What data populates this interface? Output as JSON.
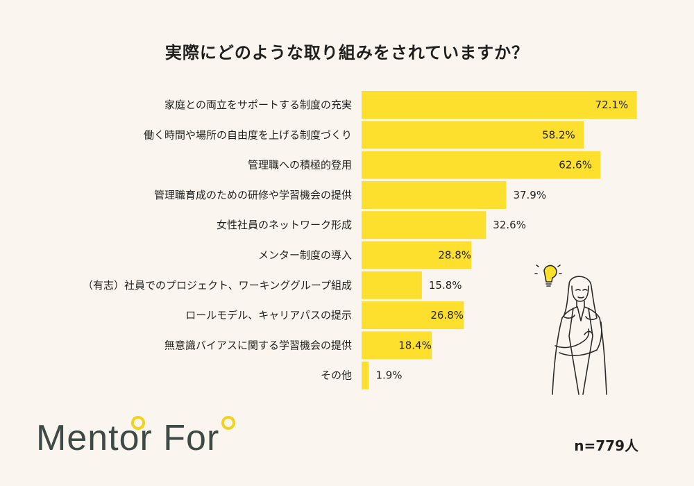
{
  "header": {
    "title": "実際にどのような取り組みをされていますか？"
  },
  "footer": {
    "n_label": "n=779人"
  },
  "logo": {
    "text": "Mentor For"
  },
  "colors": {
    "bar": "#fde02e",
    "background": "#faf6ef",
    "logo_text": "#3d4a45",
    "logo_ring": "#f2d31b"
  },
  "chart_data": {
    "type": "bar",
    "orientation": "horizontal",
    "title": "実際にどのような取り組みをされていますか？",
    "categories": [
      "家庭との両立をサポートする制度の充実",
      "働く時間や場所の自由度を上げる制度づくり",
      "管理職への積極的登用",
      "管理職育成のための研修や学習機会の提供",
      "女性社員のネットワーク形成",
      "メンター制度の導入",
      "（有志）社員でのプロジェクト、ワーキンググループ組成",
      "ロールモデル、キャリアパスの提示",
      "無意識バイアスに関する学習機会の提供",
      "その他"
    ],
    "values": [
      72.1,
      58.2,
      62.6,
      37.9,
      32.6,
      28.8,
      15.8,
      26.8,
      18.4,
      1.9
    ],
    "value_labels": [
      "72.1%",
      "58.2%",
      "62.6%",
      "37.9%",
      "32.6%",
      "28.8%",
      "15.8%",
      "26.8%",
      "18.4%",
      "1.9%"
    ],
    "xlim": [
      0,
      100
    ],
    "unit": "%",
    "grid": false,
    "legend": "none"
  }
}
